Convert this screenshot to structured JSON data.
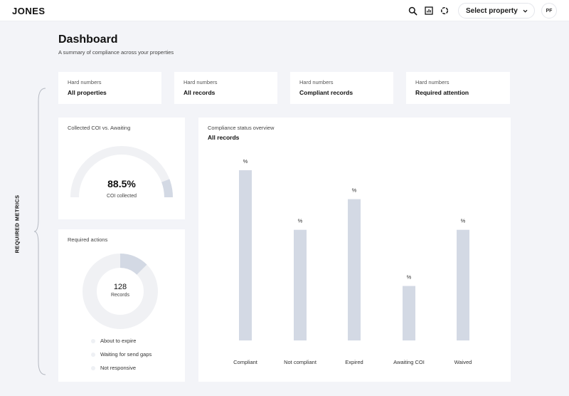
{
  "header": {
    "logo": "JONES",
    "select_property": "Select property",
    "avatar_initials": "PF",
    "icons": [
      "search-icon",
      "report-icon",
      "loading-icon",
      "chevron-down-icon"
    ]
  },
  "page": {
    "title": "Dashboard",
    "subtitle": "A summary of compliance across your properties"
  },
  "hard_numbers": [
    {
      "label": "Hard numbers",
      "value": "All properties"
    },
    {
      "label": "Hard numbers",
      "value": "All records"
    },
    {
      "label": "Hard numbers",
      "value": "Compliant records"
    },
    {
      "label": "Hard numbers",
      "value": "Required attention"
    }
  ],
  "side_label": "REQUIRED METRICS",
  "gauge": {
    "title": "Collected COI vs. Awaiting",
    "value": "88.5%",
    "label": "COI collected",
    "fraction": 0.885
  },
  "required_actions": {
    "title": "Required actions",
    "total": "128",
    "total_label": "Records",
    "legend": [
      "About to expire",
      "Waiting for send gaps",
      "Not responsive"
    ]
  },
  "colors": {
    "bar": "#d3d9e4",
    "track": "#f0f1f4",
    "accent": "#d3d9e4"
  },
  "chart_data": {
    "type": "bar",
    "title": "Compliance status overview",
    "subtitle": "All records",
    "categories": [
      "Compliant",
      "Not compliant",
      "Expired",
      "Awaiting COI",
      "Waived"
    ],
    "series": [
      {
        "values": [
          100,
          65,
          83,
          32,
          65
        ]
      }
    ],
    "data_labels": [
      "%",
      "%",
      "%",
      "%",
      "%"
    ],
    "ylim": [
      0,
      100
    ]
  }
}
